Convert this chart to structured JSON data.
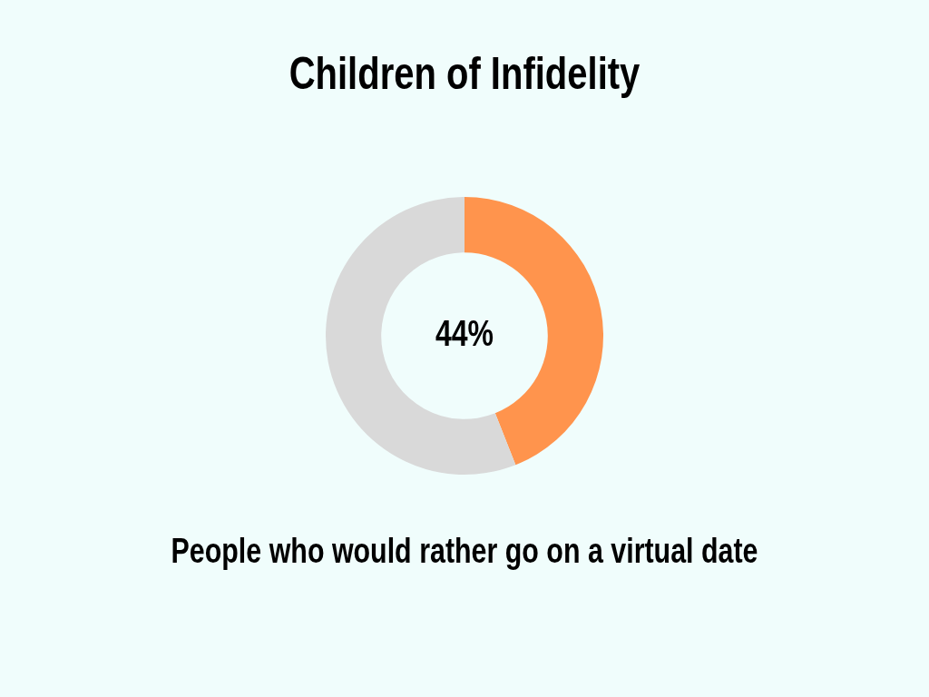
{
  "chart_data": {
    "type": "donut",
    "title": "Children of Infidelity",
    "categories": [
      null,
      null
    ],
    "values": [
      44,
      56
    ],
    "colors": [
      "#ff944d",
      "#d9d9d9"
    ],
    "value_labels": [
      "44%",
      null
    ],
    "annotations": [
      "People who would rather go on a virtual date"
    ]
  }
}
